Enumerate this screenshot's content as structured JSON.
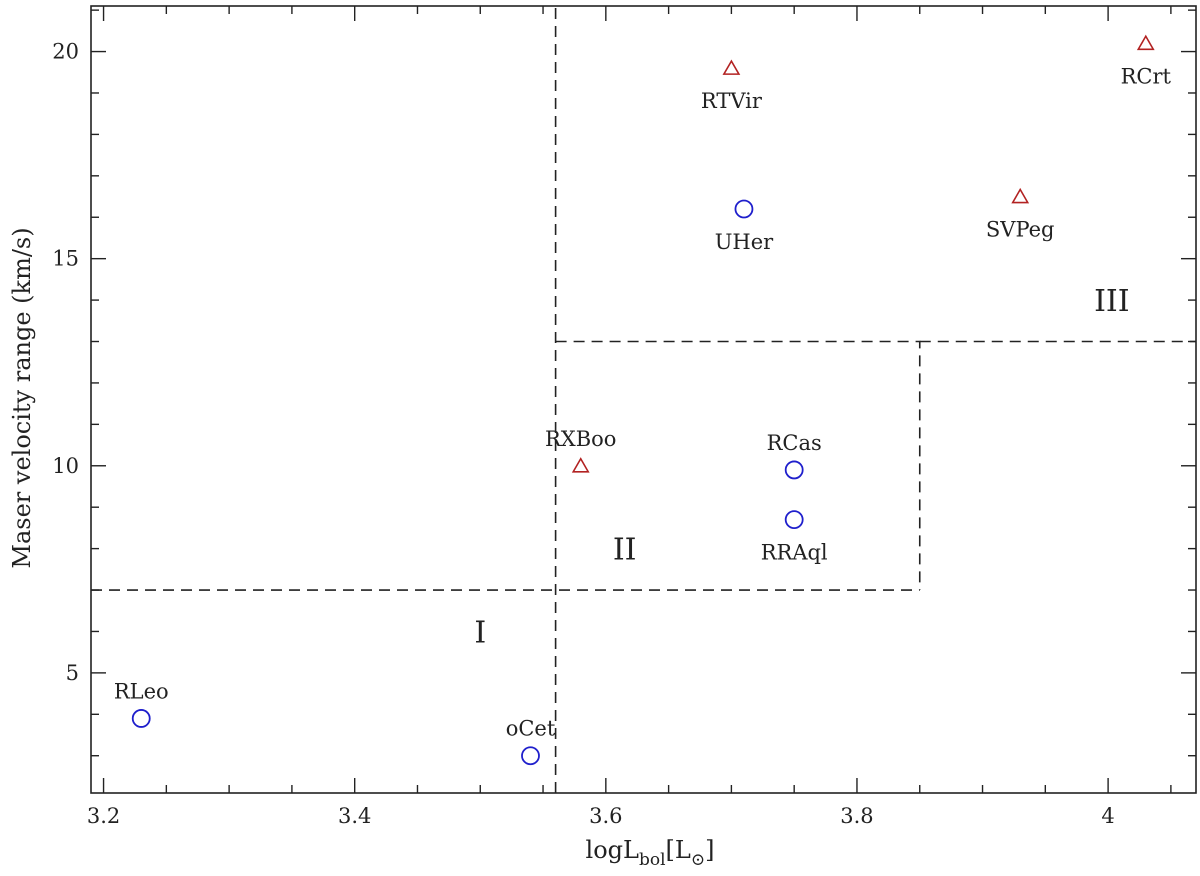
{
  "chart_data": {
    "type": "scatter",
    "xlabel_main": "logL",
    "xlabel_sub": "bol",
    "xlabel_unit_open": "[L",
    "xlabel_unit_sym": "⊙",
    "xlabel_unit_close": "]",
    "ylabel": "Maser velocity range (km/s)",
    "xlim": [
      3.19,
      4.07
    ],
    "ylim": [
      2.1,
      21.1
    ],
    "xticks": [
      3.2,
      3.4,
      3.6,
      3.8,
      4.0
    ],
    "xtick_labels": [
      "3.2",
      "3.4",
      "3.6",
      "3.8",
      "4"
    ],
    "yticks": [
      5,
      10,
      15,
      20
    ],
    "ytick_labels": [
      "5",
      "10",
      "15",
      "20"
    ],
    "x_minor_step": 0.05,
    "y_minor_step": 1,
    "colors": {
      "circle": "#1f1fcc",
      "triangle": "#b22222",
      "axis": "#222222"
    },
    "series": [
      {
        "name": "circle",
        "marker": "circle",
        "points": [
          {
            "label": "RLeo",
            "x": 3.23,
            "y": 3.9,
            "label_pos": "above"
          },
          {
            "label": "oCet",
            "x": 3.54,
            "y": 3.0,
            "label_pos": "above"
          },
          {
            "label": "RCas",
            "x": 3.75,
            "y": 9.9,
            "label_pos": "above"
          },
          {
            "label": "RRAql",
            "x": 3.75,
            "y": 8.7,
            "label_pos": "below"
          },
          {
            "label": "UHer",
            "x": 3.71,
            "y": 16.2,
            "label_pos": "below"
          }
        ]
      },
      {
        "name": "triangle",
        "marker": "triangle",
        "points": [
          {
            "label": "RXBoo",
            "x": 3.58,
            "y": 10.0,
            "label_pos": "above"
          },
          {
            "label": "RTVir",
            "x": 3.7,
            "y": 19.6,
            "label_pos": "below"
          },
          {
            "label": "SVPeg",
            "x": 3.93,
            "y": 16.5,
            "label_pos": "below"
          },
          {
            "label": "RCrt",
            "x": 4.03,
            "y": 20.2,
            "label_pos": "below"
          }
        ]
      }
    ],
    "boundaries": [
      {
        "name": "vertical-divider",
        "points": [
          [
            3.56,
            2.1
          ],
          [
            3.56,
            21.1
          ]
        ]
      },
      {
        "name": "low-velocity-divider",
        "points": [
          [
            3.19,
            7.0
          ],
          [
            3.85,
            7.0
          ]
        ]
      },
      {
        "name": "region-ii-box",
        "points": [
          [
            3.56,
            13.0
          ],
          [
            3.85,
            13.0
          ],
          [
            3.85,
            7.0
          ]
        ]
      },
      {
        "name": "high-velocity-divider",
        "points": [
          [
            3.85,
            13.0
          ],
          [
            4.07,
            13.0
          ]
        ]
      }
    ],
    "regions": [
      {
        "label": "I",
        "x": 3.5,
        "y": 6.0
      },
      {
        "label": "II",
        "x": 3.615,
        "y": 8.0
      },
      {
        "label": "III",
        "x": 4.003,
        "y": 14.0
      }
    ]
  }
}
